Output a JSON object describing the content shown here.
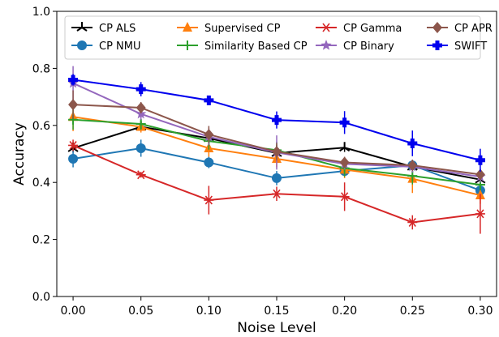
{
  "chart_data": {
    "type": "line",
    "xlabel": "Noise Level",
    "ylabel": "Accuracy",
    "x": [
      0.0,
      0.05,
      0.1,
      0.15,
      0.2,
      0.25,
      0.3
    ],
    "x_tick_labels": [
      "0.00",
      "0.05",
      "0.10",
      "0.15",
      "0.20",
      "0.25",
      "0.30"
    ],
    "y_tick_labels": [
      "0.0",
      "0.2",
      "0.4",
      "0.6",
      "0.8",
      "1.0"
    ],
    "y_ticks": [
      0.0,
      0.2,
      0.4,
      0.6,
      0.8,
      1.0
    ],
    "xlim": [
      -0.012,
      0.312
    ],
    "ylim": [
      0.0,
      1.0
    ],
    "grid": false,
    "legend_position": "top",
    "series": [
      {
        "name": "CP ALS",
        "color": "#000000",
        "marker": "tri",
        "values": [
          0.52,
          0.595,
          0.555,
          0.503,
          0.522,
          0.455,
          0.41
        ],
        "errors": [
          0.015,
          0.015,
          0.02,
          0.02,
          0.015,
          0.02,
          0.02
        ]
      },
      {
        "name": "CP NMU",
        "color": "#1f77b4",
        "marker": "circle",
        "values": [
          0.483,
          0.52,
          0.47,
          0.415,
          0.44,
          0.46,
          0.372
        ],
        "errors": [
          0.03,
          0.03,
          0.02,
          0.025,
          0.02,
          0.02,
          0.02
        ]
      },
      {
        "name": "Supervised CP",
        "color": "#ff7f0e",
        "marker": "triangle",
        "values": [
          0.63,
          0.595,
          0.52,
          0.483,
          0.445,
          0.413,
          0.355
        ],
        "errors": [
          0.05,
          0.02,
          0.03,
          0.03,
          0.03,
          0.05,
          0.03
        ]
      },
      {
        "name": "Similarity Based CP",
        "color": "#2ca02c",
        "marker": "plus",
        "values": [
          0.62,
          0.605,
          0.545,
          0.513,
          0.45,
          0.423,
          0.392
        ],
        "errors": [
          0.035,
          0.02,
          0.03,
          0.03,
          0.03,
          0.03,
          0.02
        ]
      },
      {
        "name": "CP Gamma",
        "color": "#d62728",
        "marker": "star",
        "values": [
          0.53,
          0.427,
          0.338,
          0.36,
          0.35,
          0.26,
          0.29
        ],
        "errors": [
          0.02,
          0.01,
          0.05,
          0.025,
          0.05,
          0.025,
          0.07
        ]
      },
      {
        "name": "CP Binary",
        "color": "#9467bd",
        "marker": "star5",
        "values": [
          0.748,
          0.64,
          0.56,
          0.505,
          0.465,
          0.455,
          0.42
        ],
        "errors": [
          0.06,
          0.02,
          0.03,
          0.06,
          0.02,
          0.02,
          0.02
        ]
      },
      {
        "name": "CP APR",
        "color": "#8c564b",
        "marker": "diamond",
        "values": [
          0.673,
          0.662,
          0.568,
          0.508,
          0.47,
          0.46,
          0.428
        ],
        "errors": [
          0.05,
          0.02,
          0.03,
          0.03,
          0.02,
          0.02,
          0.02
        ]
      },
      {
        "name": "SWIFT",
        "color": "#0000ee",
        "marker": "plusfilled",
        "values": [
          0.76,
          0.727,
          0.688,
          0.619,
          0.61,
          0.537,
          0.478
        ],
        "errors": [
          0.02,
          0.025,
          0.015,
          0.03,
          0.04,
          0.045,
          0.04
        ]
      }
    ]
  }
}
